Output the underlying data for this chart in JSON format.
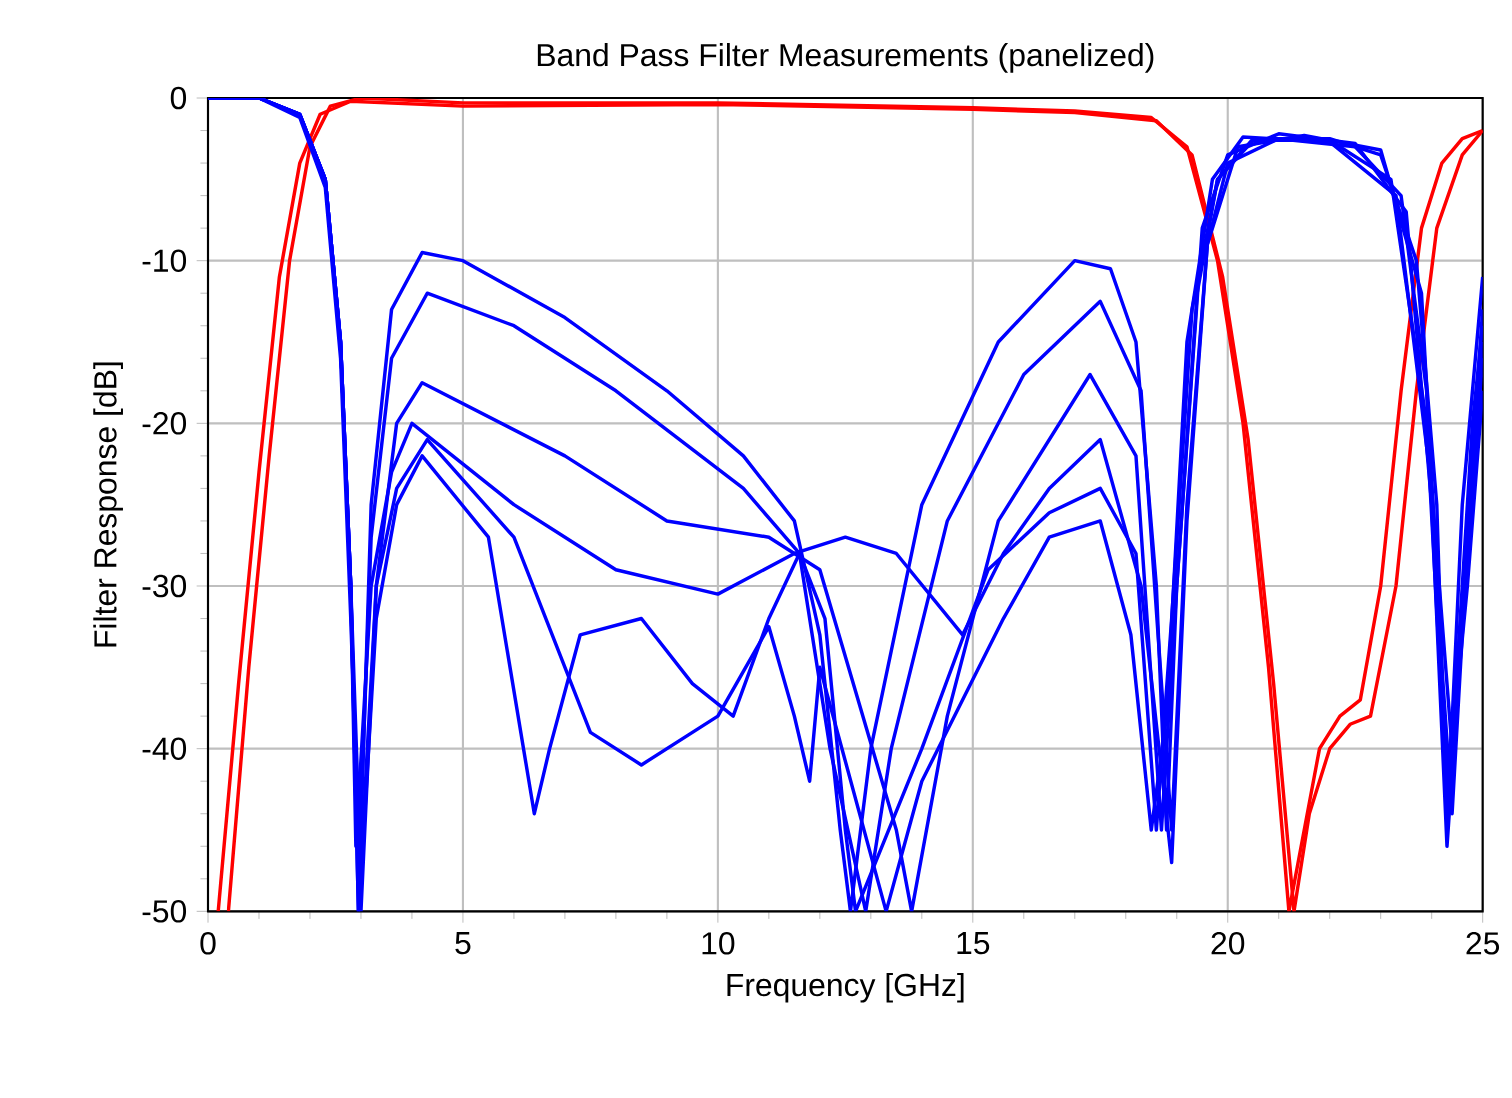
{
  "chart_data": {
    "type": "line",
    "title": "Band Pass Filter Measurements (panelized)",
    "xlabel": "Frequency [GHz]",
    "ylabel": "Filter Response [dB]",
    "xlim": [
      0,
      25
    ],
    "ylim": [
      -50,
      0
    ],
    "xticks": [
      0,
      5,
      10,
      15,
      20,
      25
    ],
    "yticks": [
      -50,
      -40,
      -30,
      -20,
      -10,
      0
    ],
    "grid": true,
    "marker": "none",
    "line_style": "solid",
    "series": [
      {
        "color": "#ff0000",
        "x": [
          0.4,
          0.8,
          1.2,
          1.6,
          2.0,
          2.4,
          3,
          5,
          10,
          15,
          17,
          18.5,
          19.2,
          19.8,
          20.3,
          20.8,
          21.2,
          21.5,
          21.8,
          22.2,
          22.6,
          23,
          23.4,
          23.8,
          24.2,
          24.6,
          25
        ],
        "values": [
          -50,
          -35,
          -22,
          -10,
          -3,
          -0.5,
          0,
          -0.3,
          -0.3,
          -0.6,
          -0.8,
          -1.2,
          -3,
          -10,
          -20,
          -35,
          -50,
          -45,
          -40,
          -38,
          -37,
          -30,
          -18,
          -8,
          -4,
          -2.5,
          -2
        ]
      },
      {
        "color": "#ff0000",
        "x": [
          0.2,
          0.6,
          1.0,
          1.4,
          1.8,
          2.2,
          2.8,
          5,
          10,
          15,
          17,
          18.6,
          19.3,
          19.9,
          20.4,
          20.9,
          21.3,
          21.6,
          22.0,
          22.4,
          22.8,
          23.3,
          23.7,
          24.1,
          24.6,
          25
        ],
        "values": [
          -50,
          -36,
          -23,
          -11,
          -4,
          -1,
          -0.2,
          -0.5,
          -0.4,
          -0.7,
          -0.9,
          -1.4,
          -3.5,
          -11,
          -21,
          -36,
          -50,
          -44,
          -40,
          -38.5,
          -38,
          -30,
          -18,
          -8,
          -3.5,
          -2
        ]
      },
      {
        "color": "#0000ff",
        "x": [
          0,
          1,
          1.8,
          2.3,
          2.6,
          2.8,
          2.95,
          3.2,
          3.6,
          4.2,
          5,
          7,
          9,
          10.5,
          11.5,
          12,
          12.4,
          12.6,
          13,
          14,
          15.5,
          17,
          17.7,
          18.2,
          18.6,
          18.8,
          19,
          19.4,
          19.8,
          20.5,
          22,
          23,
          23.7,
          24.1,
          24.3,
          24.6,
          25
        ],
        "values": [
          0,
          0,
          -1,
          -5,
          -15,
          -30,
          -50,
          -25,
          -13,
          -9.5,
          -10,
          -13.5,
          -18,
          -22,
          -26,
          -33,
          -45,
          -50,
          -40,
          -25,
          -15,
          -10,
          -10.5,
          -15,
          -30,
          -45,
          -30,
          -12,
          -5,
          -2.5,
          -2.5,
          -3.5,
          -10,
          -25,
          -45,
          -25,
          -11
        ]
      },
      {
        "color": "#0000ff",
        "x": [
          0,
          1,
          1.8,
          2.3,
          2.6,
          2.8,
          2.95,
          3.2,
          3.6,
          4.3,
          6,
          8,
          10.5,
          11.6,
          12.2,
          12.9,
          13.4,
          14.5,
          16,
          17.5,
          18.3,
          18.9,
          19.2,
          19.6,
          20,
          21,
          22.5,
          23.4,
          23.9,
          24.3,
          24.5,
          24.8,
          25
        ],
        "values": [
          0,
          0,
          -1,
          -5,
          -15,
          -30,
          -48,
          -27,
          -16,
          -12,
          -14,
          -18,
          -24,
          -28,
          -40,
          -50,
          -40,
          -26,
          -17,
          -12.5,
          -18,
          -45,
          -25,
          -9,
          -4,
          -2.5,
          -3,
          -6,
          -18,
          -42,
          -35,
          -20,
          -14
        ]
      },
      {
        "color": "#0000ff",
        "x": [
          0,
          1,
          1.8,
          2.3,
          2.6,
          2.8,
          3.0,
          3.3,
          3.7,
          4.2,
          7,
          9,
          11,
          12,
          13.5,
          13.8,
          14.5,
          15.5,
          17.3,
          18.2,
          18.7,
          19.0,
          19.5,
          20,
          21,
          22.5,
          23.5,
          24,
          24.3,
          24.7,
          25
        ],
        "values": [
          0,
          0,
          -1.2,
          -5.5,
          -16,
          -32,
          -50,
          -30,
          -20,
          -17.5,
          -22,
          -26,
          -27,
          -29,
          -45,
          -50,
          -38,
          -26,
          -17,
          -22,
          -45,
          -30,
          -8,
          -3.5,
          -2.2,
          -2.8,
          -7,
          -25,
          -46,
          -28,
          -16
        ]
      },
      {
        "color": "#0000ff",
        "x": [
          0,
          1,
          1.8,
          2.3,
          2.6,
          2.8,
          2.9,
          3.2,
          3.6,
          4,
          6,
          8,
          10,
          11.5,
          12.5,
          13.5,
          14.8,
          15.6,
          16.5,
          17.5,
          18.3,
          18.9,
          19.2,
          19.6,
          20.2,
          21.5,
          23,
          23.8,
          24.2,
          24.4,
          24.8,
          25
        ],
        "values": [
          0,
          0,
          -1,
          -5,
          -15,
          -30,
          -46,
          -30,
          -23,
          -20,
          -25,
          -29,
          -30.5,
          -28,
          -27,
          -28,
          -33,
          -28,
          -24,
          -21,
          -30,
          -47,
          -26,
          -9,
          -3,
          -2.3,
          -3.2,
          -12,
          -35,
          -44,
          -22,
          -13
        ]
      },
      {
        "color": "#0000ff",
        "x": [
          0,
          1,
          1.8,
          2.3,
          2.6,
          2.8,
          3.0,
          3.3,
          3.7,
          4.2,
          5.5,
          6.4,
          6.7,
          7.3,
          8.5,
          9.5,
          10.3,
          11,
          11.6,
          12.1,
          12.5,
          12.7,
          14,
          15.3,
          16.5,
          17.5,
          18.2,
          18.6,
          18.9,
          19.3,
          19.8,
          20.5,
          22,
          23.2,
          23.9,
          24.3,
          24.7,
          25
        ],
        "values": [
          0,
          0,
          -1,
          -5,
          -15,
          -30,
          -48,
          -32,
          -25,
          -22,
          -27,
          -44,
          -40,
          -33,
          -32,
          -36,
          -38,
          -32,
          -28,
          -32,
          -45,
          -50,
          -40,
          -29,
          -25.5,
          -24,
          -28,
          -45,
          -32,
          -13,
          -5,
          -2.6,
          -2.6,
          -5,
          -20,
          -43,
          -30,
          -18
        ]
      },
      {
        "color": "#0000ff",
        "x": [
          0,
          1,
          1.8,
          2.3,
          2.6,
          2.8,
          2.95,
          3.3,
          3.7,
          4.3,
          6,
          7.5,
          8.5,
          10,
          11,
          11.5,
          11.8,
          12,
          13.3,
          14,
          15.6,
          16.5,
          17.5,
          18.1,
          18.5,
          18.8,
          19.2,
          19.7,
          20.3,
          22,
          23.3,
          24,
          24.4,
          24.7,
          25
        ],
        "values": [
          0,
          0,
          -1,
          -5,
          -15,
          -30,
          -50,
          -30,
          -24,
          -21,
          -27,
          -39,
          -41,
          -38,
          -32.5,
          -38,
          -42,
          -35,
          -50,
          -42,
          -32,
          -27,
          -26,
          -33,
          -45,
          -38,
          -15,
          -5,
          -2.4,
          -2.7,
          -6,
          -24,
          -40,
          -26,
          -15
        ]
      }
    ]
  }
}
